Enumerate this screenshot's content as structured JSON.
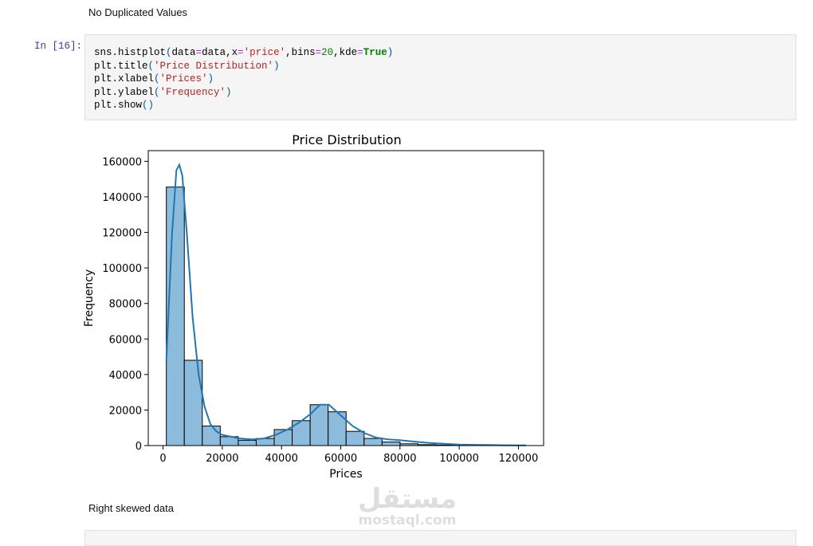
{
  "outputs": {
    "no_dup": "No Duplicated Values",
    "skew": "Right skewed data"
  },
  "cell": {
    "prompt": "In [16]:",
    "code_lines": [
      "sns.histplot(data=data,x='price',bins=20,kde=True)",
      "plt.title('Price Distribution')",
      "plt.xlabel('Prices')",
      "plt.ylabel('Frequency')",
      "plt.show()"
    ]
  },
  "watermark": {
    "arabic": "مستقل",
    "latin": "mostaql.com"
  },
  "colors": {
    "bar_fill": "#8dbbdc",
    "kde_line": "#1f77b4",
    "cell_bg": "#f5f5f5",
    "prompt": "#303f9f"
  },
  "chart_data": {
    "type": "bar",
    "title": "Price Distribution",
    "xlabel": "Prices",
    "ylabel": "Frequency",
    "xlim": [
      -5000,
      128500
    ],
    "ylim": [
      0,
      166000
    ],
    "xticks": [
      0,
      20000,
      40000,
      60000,
      80000,
      100000,
      120000
    ],
    "yticks": [
      0,
      20000,
      40000,
      60000,
      80000,
      100000,
      120000,
      140000,
      160000
    ],
    "bin_edges": [
      1105,
      7176,
      13247,
      19318,
      25389,
      31460,
      37531,
      43602,
      49673,
      55744,
      61815,
      67886,
      73957,
      80028,
      86099,
      92170,
      98241,
      104312,
      110383,
      116454,
      122525
    ],
    "counts": [
      145500,
      48000,
      11000,
      5000,
      3000,
      4000,
      9000,
      14000,
      23000,
      19000,
      8000,
      4000,
      2000,
      1000,
      500,
      300,
      200,
      100,
      100,
      50
    ],
    "kde": {
      "x": [
        1105,
        3000,
        4500,
        5500,
        6500,
        8000,
        10000,
        12000,
        14000,
        16000,
        18000,
        20000,
        23000,
        26000,
        30000,
        34000,
        38000,
        42000,
        46000,
        50000,
        53000,
        56000,
        60000,
        64000,
        68000,
        72000,
        76000,
        80000,
        85000,
        90000,
        95000,
        100000,
        105000,
        110000,
        115000,
        122525
      ],
      "y": [
        48000,
        118000,
        155000,
        158000,
        152000,
        120000,
        72000,
        40000,
        22000,
        12000,
        8000,
        6000,
        5000,
        4000,
        3500,
        4000,
        6000,
        9000,
        13000,
        18000,
        23000,
        23000,
        17000,
        11000,
        7000,
        4500,
        3500,
        3000,
        2200,
        1500,
        1000,
        600,
        400,
        300,
        200,
        150
      ]
    }
  }
}
